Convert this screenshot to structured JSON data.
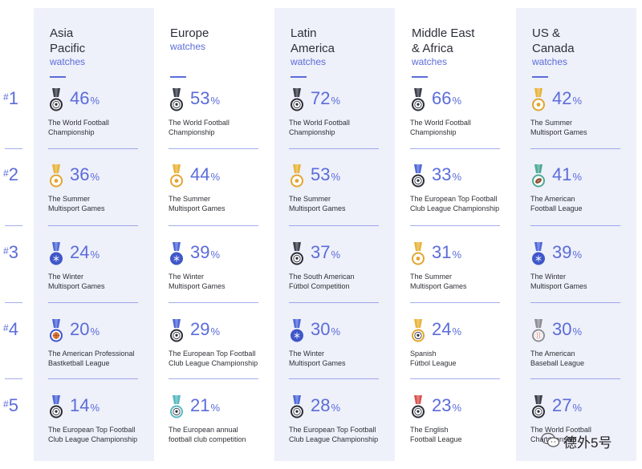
{
  "ranks": [
    "1",
    "2",
    "3",
    "4",
    "5"
  ],
  "rank_hash": "#",
  "percent_sign": "%",
  "columns": [
    {
      "region": "Asia\nPacific",
      "watches": "watches",
      "entries": [
        {
          "pct": "46",
          "event": "The World Football\nChampionship",
          "medal": "soccer-medal-icon",
          "ribbon": "#3b3f4b"
        },
        {
          "pct": "36",
          "event": "The Summer\nMultisport Games",
          "medal": "summer-games-medal-icon",
          "ribbon": "#e8b43a"
        },
        {
          "pct": "24",
          "event": "The Winter\nMultisport Games",
          "medal": "snowflake-medal-icon",
          "ribbon": "#4f68d8"
        },
        {
          "pct": "20",
          "event": "The American Professional\nBastketball League",
          "medal": "basketball-medal-icon",
          "ribbon": "#4f68d8"
        },
        {
          "pct": "14",
          "event": "The European Top Football\nClub League Championship",
          "medal": "soccer-medal-icon",
          "ribbon": "#4f68d8"
        }
      ]
    },
    {
      "region": "Europe",
      "watches": "watches",
      "entries": [
        {
          "pct": "53",
          "event": "The World Football\nChampionship",
          "medal": "soccer-medal-icon",
          "ribbon": "#3b3f4b"
        },
        {
          "pct": "44",
          "event": "The Summer\nMultisport Games",
          "medal": "summer-games-medal-icon",
          "ribbon": "#e8b43a"
        },
        {
          "pct": "39",
          "event": "The Winter\nMultisport Games",
          "medal": "snowflake-medal-icon",
          "ribbon": "#4f68d8"
        },
        {
          "pct": "29",
          "event": "The European Top Football\nClub League Championship",
          "medal": "soccer-medal-icon",
          "ribbon": "#4f68d8"
        },
        {
          "pct": "21",
          "event": "The European annual\nfootball club competition",
          "medal": "soccer-medal-icon",
          "ribbon": "#59b8c2"
        }
      ]
    },
    {
      "region": "Latin\nAmerica",
      "watches": "watches",
      "entries": [
        {
          "pct": "72",
          "event": "The World Football\nChampionship",
          "medal": "soccer-medal-icon",
          "ribbon": "#3b3f4b"
        },
        {
          "pct": "53",
          "event": "The Summer\nMultisport Games",
          "medal": "summer-games-medal-icon",
          "ribbon": "#e8b43a"
        },
        {
          "pct": "37",
          "event": "The South American\nFútbol Competition",
          "medal": "soccer-medal-icon",
          "ribbon": "#3b3f4b"
        },
        {
          "pct": "30",
          "event": "The Winter\nMultisport Games",
          "medal": "snowflake-medal-icon",
          "ribbon": "#4f68d8"
        },
        {
          "pct": "28",
          "event": "The European Top Football\nClub League Championship",
          "medal": "soccer-medal-icon",
          "ribbon": "#4f68d8"
        }
      ]
    },
    {
      "region": "Middle East\n& Africa",
      "watches": "watches",
      "entries": [
        {
          "pct": "66",
          "event": "The World Football\nChampionship",
          "medal": "soccer-medal-icon",
          "ribbon": "#3b3f4b"
        },
        {
          "pct": "33",
          "event": "The European Top Football\nClub League Championship",
          "medal": "soccer-medal-icon",
          "ribbon": "#4f68d8"
        },
        {
          "pct": "31",
          "event": "The Summer\nMultisport Games",
          "medal": "summer-games-medal-icon",
          "ribbon": "#e8b43a"
        },
        {
          "pct": "24",
          "event": "Spanish\nFútbol League",
          "medal": "soccer-medal-icon",
          "ribbon": "#e8b43a"
        },
        {
          "pct": "23",
          "event": "The English\nFootball League",
          "medal": "soccer-medal-icon",
          "ribbon": "#d8534f"
        }
      ]
    },
    {
      "region": "US &\nCanada",
      "watches": "watches",
      "entries": [
        {
          "pct": "42",
          "event": "The Summer\nMultisport Games",
          "medal": "summer-games-medal-icon",
          "ribbon": "#e8b43a"
        },
        {
          "pct": "41",
          "event": "The American\nFootball League",
          "medal": "american-football-medal-icon",
          "ribbon": "#4caa94"
        },
        {
          "pct": "39",
          "event": "The Winter\nMultisport Games",
          "medal": "snowflake-medal-icon",
          "ribbon": "#4f68d8"
        },
        {
          "pct": "30",
          "event": "The American\nBaseball League",
          "medal": "baseball-medal-icon",
          "ribbon": "#8e8e96"
        },
        {
          "pct": "27",
          "event": "The World Football\nChampionship",
          "medal": "soccer-medal-icon",
          "ribbon": "#3b3f4b"
        }
      ]
    }
  ],
  "watermark": {
    "text": "德外5号",
    "icon": "wechat-icon"
  }
}
